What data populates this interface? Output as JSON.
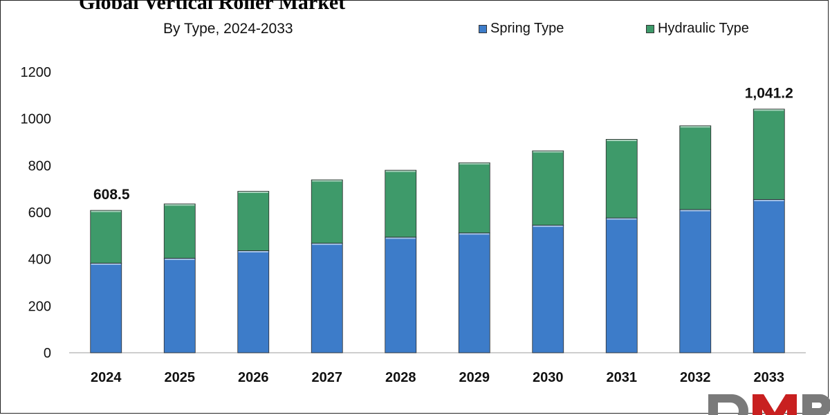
{
  "title": "Global Vertical Roller Market",
  "subtitle": "By Type, 2024-2033",
  "legend": [
    {
      "label": "Spring Type",
      "color": "#3d7cc9"
    },
    {
      "label": "Hydraulic Type",
      "color": "#3e9a6a"
    }
  ],
  "chart_data": {
    "type": "bar",
    "stacked": true,
    "categories": [
      "2024",
      "2025",
      "2026",
      "2027",
      "2028",
      "2029",
      "2030",
      "2031",
      "2032",
      "2033"
    ],
    "series": [
      {
        "name": "Spring Type",
        "color": "#3d7cc9",
        "values": [
          383,
          404,
          436,
          468,
          494,
          512,
          545,
          576,
          612,
          655
        ]
      },
      {
        "name": "Hydraulic Type",
        "color": "#3e9a6a",
        "values": [
          225.5,
          232,
          254,
          271,
          286,
          300,
          318,
          336,
          358,
          386.2
        ]
      }
    ],
    "data_labels": [
      {
        "category": "2024",
        "text": "608.5"
      },
      {
        "category": "2033",
        "text": "1,041.2"
      }
    ],
    "yticks": [
      0,
      200,
      400,
      600,
      800,
      1000,
      1200
    ],
    "ylim": [
      0,
      1200
    ],
    "grid": false,
    "legend_position": "top-right"
  },
  "logo_icon": "dmr-logo-icon"
}
